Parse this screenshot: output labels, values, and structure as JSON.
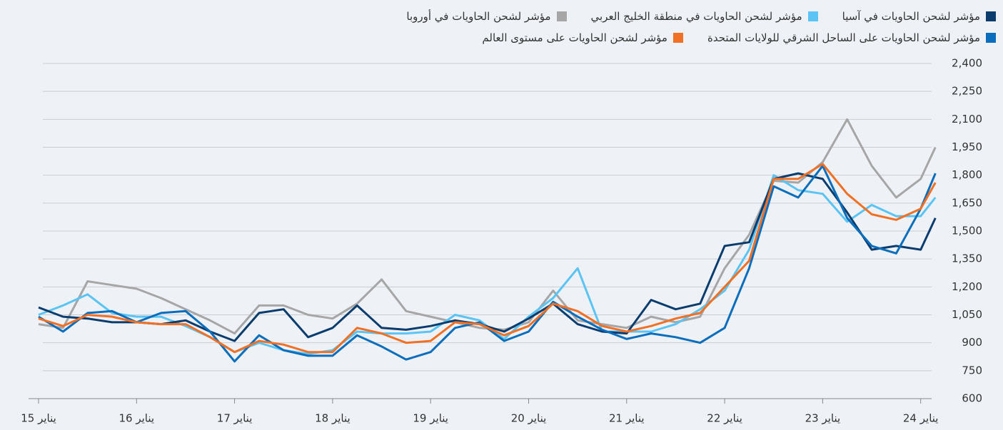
{
  "chart_data": {
    "type": "line",
    "x": [
      2015,
      2015.25,
      2015.5,
      2015.75,
      2016,
      2016.25,
      2016.5,
      2016.75,
      2017,
      2017.25,
      2017.5,
      2017.75,
      2018,
      2018.25,
      2018.5,
      2018.75,
      2019,
      2019.25,
      2019.5,
      2019.75,
      2020,
      2020.25,
      2020.5,
      2020.75,
      2021,
      2021.25,
      2021.5,
      2021.75,
      2022,
      2022.25,
      2022.5,
      2022.75,
      2023,
      2023.25,
      2023.5,
      2023.75,
      2024,
      2024.15
    ],
    "series": [
      {
        "name": "مؤشر لشحن الحاويات في آسيا",
        "color": "#0b3c6e",
        "values": [
          1090,
          1040,
          1030,
          1010,
          1010,
          1000,
          1020,
          960,
          910,
          1060,
          1080,
          930,
          980,
          1100,
          980,
          970,
          990,
          1020,
          1000,
          960,
          1030,
          1110,
          1000,
          960,
          950,
          1130,
          1080,
          1110,
          1420,
          1440,
          1780,
          1810,
          1780,
          1600,
          1400,
          1420,
          1400,
          1570
        ]
      },
      {
        "name": "مؤشر لشحن الحاويات في منطقة الخليج العربي",
        "color": "#5bc4f5",
        "values": [
          1050,
          1100,
          1160,
          1060,
          1040,
          1040,
          990,
          930,
          850,
          900,
          860,
          840,
          860,
          960,
          950,
          950,
          960,
          1050,
          1020,
          920,
          1040,
          1140,
          1300,
          960,
          960,
          960,
          1000,
          1080,
          1180,
          1400,
          1800,
          1720,
          1700,
          1550,
          1640,
          1580,
          1580,
          1680
        ]
      },
      {
        "name": "مؤشر لشحن الحاويات في أوروبا",
        "color": "#a6a6a6",
        "values": [
          1000,
          980,
          1230,
          1210,
          1190,
          1140,
          1080,
          1020,
          950,
          1100,
          1100,
          1050,
          1030,
          1110,
          1240,
          1070,
          1040,
          1010,
          980,
          970,
          1010,
          1180,
          1020,
          1000,
          980,
          1040,
          1010,
          1040,
          1300,
          1480,
          1770,
          1760,
          1870,
          2100,
          1850,
          1680,
          1780,
          1950
        ]
      },
      {
        "name": "مؤشر لشحن الحاويات على الساحل الشرقي للولايات المتحدة",
        "color": "#0a6ebd",
        "values": [
          1040,
          960,
          1060,
          1070,
          1010,
          1060,
          1070,
          960,
          800,
          940,
          860,
          830,
          830,
          940,
          880,
          810,
          850,
          980,
          1010,
          910,
          960,
          1120,
          1040,
          970,
          920,
          950,
          930,
          900,
          980,
          1300,
          1740,
          1680,
          1850,
          1570,
          1420,
          1380,
          1620,
          1810
        ]
      },
      {
        "name": "مؤشر لشحن الحاويات على مستوى العالم",
        "color": "#f07125",
        "values": [
          1030,
          990,
          1050,
          1040,
          1010,
          1000,
          1000,
          930,
          850,
          910,
          890,
          850,
          850,
          980,
          950,
          900,
          910,
          1010,
          1000,
          940,
          990,
          1110,
          1070,
          990,
          960,
          990,
          1030,
          1060,
          1200,
          1340,
          1780,
          1780,
          1860,
          1700,
          1590,
          1560,
          1620,
          1760
        ]
      }
    ],
    "xlim": [
      2014.9,
      2024.2
    ],
    "xticks": [
      {
        "value": 2015,
        "label": "15 يناير"
      },
      {
        "value": 2016,
        "label": "16 يناير"
      },
      {
        "value": 2017,
        "label": "17 يناير"
      },
      {
        "value": 2018,
        "label": "18 يناير"
      },
      {
        "value": 2019,
        "label": "19 يناير"
      },
      {
        "value": 2020,
        "label": "20 يناير"
      },
      {
        "value": 2021,
        "label": "21 يناير"
      },
      {
        "value": 2022,
        "label": "22 يناير"
      },
      {
        "value": 2023,
        "label": "23 يناير"
      },
      {
        "value": 2024,
        "label": "24 يناير"
      }
    ],
    "ylim": [
      600,
      2400
    ],
    "yticks": [
      600,
      750,
      900,
      {
        "value": 1050,
        "label": "1,050"
      },
      {
        "value": 1200,
        "label": "1,200"
      },
      {
        "value": 1350,
        "label": "1,350"
      },
      {
        "value": 1500,
        "label": "1,500"
      },
      {
        "value": 1650,
        "label": "1,650"
      },
      {
        "value": 1800,
        "label": "1,800"
      },
      {
        "value": 1950,
        "label": "1,950"
      },
      {
        "value": 2100,
        "label": "2,100"
      },
      {
        "value": 2250,
        "label": "2,250"
      },
      {
        "value": 2400,
        "label": "2,400"
      }
    ],
    "grid": true
  }
}
